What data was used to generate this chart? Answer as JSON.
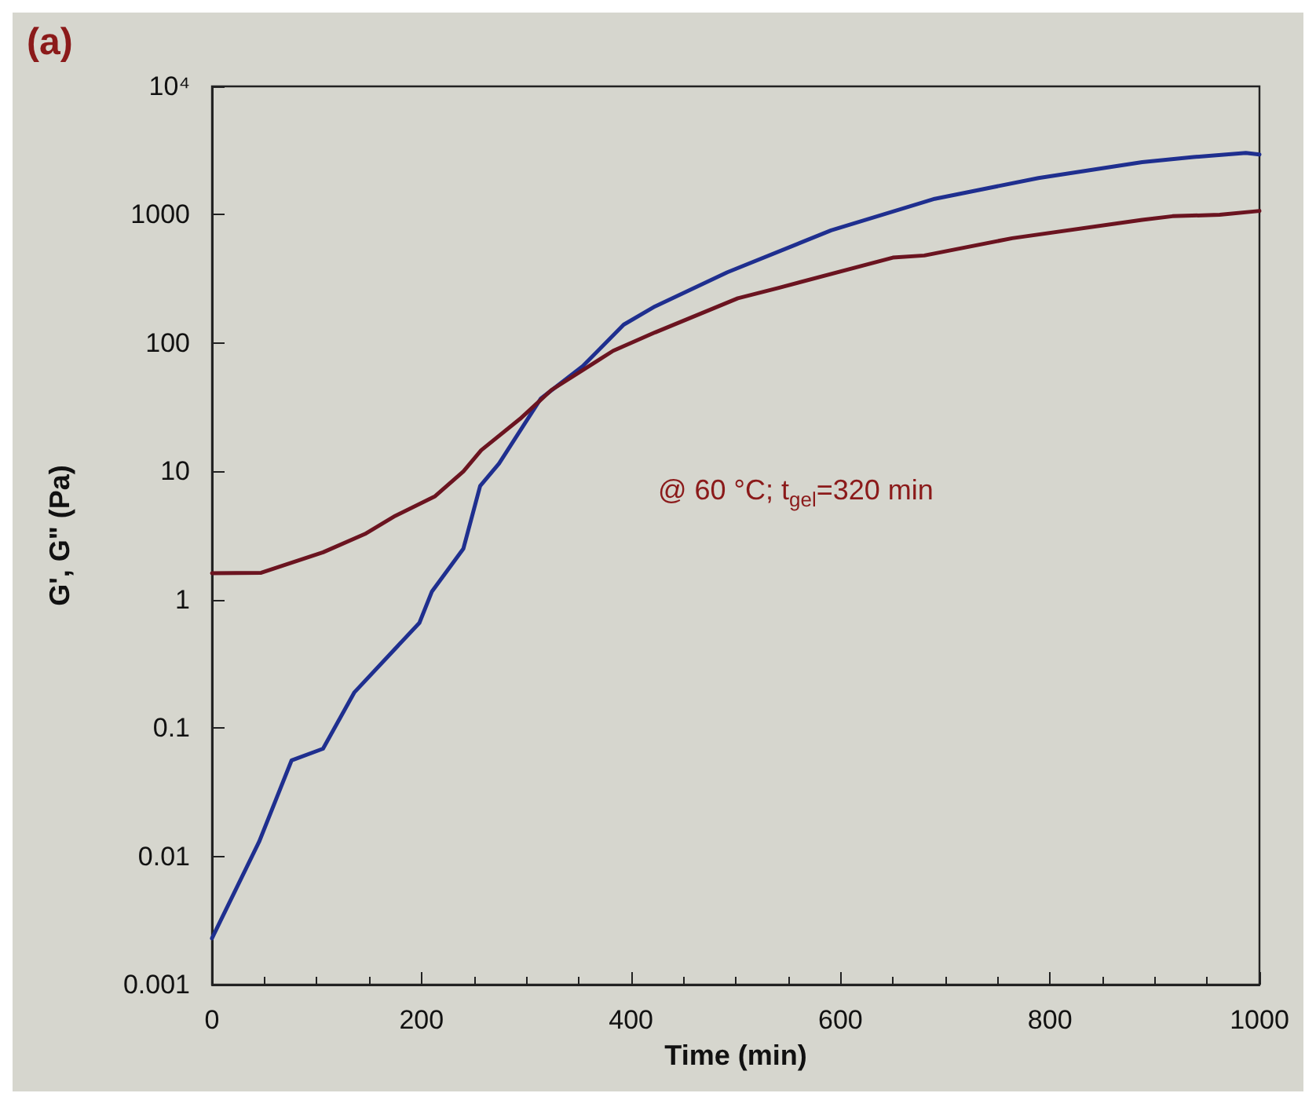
{
  "chart_data": {
    "type": "line",
    "title": "(a)",
    "xlabel": "Time (min)",
    "ylabel": "G', G\" (Pa)",
    "annotations": [
      "@ 60 °C; t$_{gel}$=320 min"
    ],
    "xlim": [
      0,
      1000
    ],
    "xticks": [
      0,
      200,
      400,
      600,
      800,
      1000
    ],
    "ylim": [
      0.001,
      10000
    ],
    "yticks": [
      0.001,
      0.01,
      0.1,
      1,
      10,
      100,
      1000,
      {
        "value": 10000,
        "label": "10⁴"
      }
    ],
    "log": "y",
    "grid": false,
    "marker": "none",
    "line_style": "solid",
    "series": [
      {
        "color": "#1f2f8f",
        "x": [
          0,
          45,
          76,
          106,
          136,
          198,
          210,
          240,
          256,
          274,
          314,
          354,
          393,
          423,
          492,
          591,
          690,
          789,
          888,
          937,
          987,
          1000
        ],
        "values": [
          0.0023,
          0.013,
          0.056,
          0.069,
          0.19,
          0.66,
          1.16,
          2.5,
          7.7,
          11.5,
          37,
          66,
          139,
          193,
          356,
          755,
          1330,
          1930,
          2570,
          2810,
          3030,
          2950
        ]
      },
      {
        "color": "#6b1420",
        "x": [
          0,
          47,
          106,
          146,
          175,
          213,
          240,
          257,
          294,
          324,
          383,
          423,
          502,
          541,
          650,
          680,
          764,
          888,
          917,
          962,
          1000
        ],
        "values": [
          1.61,
          1.62,
          2.34,
          3.25,
          4.5,
          6.4,
          10,
          14.6,
          25.6,
          43,
          87,
          121,
          223,
          269,
          463,
          481,
          656,
          912,
          973,
          1000,
          1070
        ]
      }
    ]
  }
}
